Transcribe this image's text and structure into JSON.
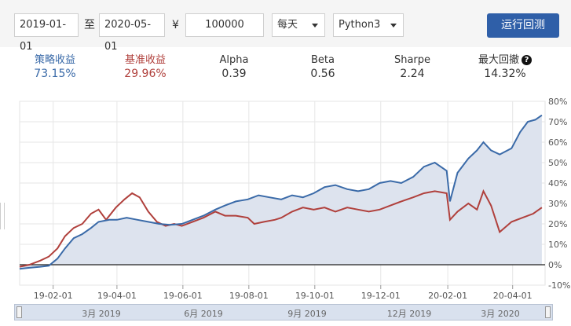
{
  "toolbar": {
    "start_date": "2019-01-01",
    "separator": "至",
    "end_date": "2020-05-01",
    "currency": "¥",
    "capital": "100000",
    "frequency": "每天",
    "language": "Python3",
    "run_button": "运行回测"
  },
  "stats": [
    {
      "name": "策略收益",
      "value": "73.15%",
      "color": "#3a6aa8"
    },
    {
      "name": "基准收益",
      "value": "29.96%",
      "color": "#b0403c"
    },
    {
      "name": "Alpha",
      "value": "0.39",
      "color": "#333333"
    },
    {
      "name": "Beta",
      "value": "0.56",
      "color": "#333333"
    },
    {
      "name": "Sharpe",
      "value": "2.24",
      "color": "#333333"
    },
    {
      "name": "最大回撤",
      "value": "14.32%",
      "color": "#333333"
    }
  ],
  "navigator": {
    "labels": [
      "3月 2019",
      "6月 2019",
      "9月 2019",
      "12月 2019",
      "3月 2020"
    ]
  },
  "chart_data": {
    "type": "line",
    "x_tick_labels": [
      "19-02-01",
      "19-04-01",
      "19-06-01",
      "19-08-01",
      "19-10-01",
      "19-12-01",
      "20-02-01",
      "20-04-01"
    ],
    "y_tick_labels": [
      "80%",
      "70%",
      "60%",
      "50%",
      "40%",
      "30%",
      "20%",
      "10%",
      "0%",
      "-10%"
    ],
    "ylim": [
      -10,
      80
    ],
    "grid": true,
    "series": [
      {
        "name": "策略收益",
        "color": "#3a6aa8",
        "fill": "#dde3ee",
        "points": [
          [
            "2019-01-01",
            -2
          ],
          [
            "2019-01-10",
            -1.5
          ],
          [
            "2019-01-20",
            -1
          ],
          [
            "2019-01-28",
            -0.5
          ],
          [
            "2019-02-05",
            3
          ],
          [
            "2019-02-12",
            8
          ],
          [
            "2019-02-20",
            13
          ],
          [
            "2019-02-28",
            15
          ],
          [
            "2019-03-08",
            18
          ],
          [
            "2019-03-15",
            21
          ],
          [
            "2019-03-25",
            22
          ],
          [
            "2019-04-01",
            22
          ],
          [
            "2019-04-10",
            23
          ],
          [
            "2019-04-20",
            22
          ],
          [
            "2019-04-30",
            21
          ],
          [
            "2019-05-10",
            20
          ],
          [
            "2019-05-20",
            19.5
          ],
          [
            "2019-05-31",
            20
          ],
          [
            "2019-06-10",
            22
          ],
          [
            "2019-06-20",
            24
          ],
          [
            "2019-07-01",
            27
          ],
          [
            "2019-07-10",
            29
          ],
          [
            "2019-07-20",
            31
          ],
          [
            "2019-07-31",
            32
          ],
          [
            "2019-08-10",
            34
          ],
          [
            "2019-08-20",
            33
          ],
          [
            "2019-08-31",
            32
          ],
          [
            "2019-09-10",
            34
          ],
          [
            "2019-09-20",
            33
          ],
          [
            "2019-09-30",
            35
          ],
          [
            "2019-10-10",
            38
          ],
          [
            "2019-10-20",
            39
          ],
          [
            "2019-10-31",
            37
          ],
          [
            "2019-11-10",
            36
          ],
          [
            "2019-11-20",
            37
          ],
          [
            "2019-11-30",
            40
          ],
          [
            "2019-12-10",
            41
          ],
          [
            "2019-12-20",
            40
          ],
          [
            "2019-12-31",
            43
          ],
          [
            "2020-01-10",
            48
          ],
          [
            "2020-01-20",
            50
          ],
          [
            "2020-01-31",
            46
          ],
          [
            "2020-02-03",
            31
          ],
          [
            "2020-02-10",
            45
          ],
          [
            "2020-02-20",
            52
          ],
          [
            "2020-02-28",
            56
          ],
          [
            "2020-03-05",
            60
          ],
          [
            "2020-03-12",
            56
          ],
          [
            "2020-03-20",
            54
          ],
          [
            "2020-03-31",
            57
          ],
          [
            "2020-04-08",
            65
          ],
          [
            "2020-04-15",
            70
          ],
          [
            "2020-04-22",
            71
          ],
          [
            "2020-04-28",
            73.2
          ]
        ]
      },
      {
        "name": "基准收益",
        "color": "#b0403c",
        "points": [
          [
            "2019-01-01",
            -1
          ],
          [
            "2019-01-10",
            0
          ],
          [
            "2019-01-20",
            2
          ],
          [
            "2019-01-28",
            4
          ],
          [
            "2019-02-05",
            8
          ],
          [
            "2019-02-12",
            14
          ],
          [
            "2019-02-20",
            18
          ],
          [
            "2019-02-28",
            20
          ],
          [
            "2019-03-08",
            25
          ],
          [
            "2019-03-15",
            27
          ],
          [
            "2019-03-22",
            22
          ],
          [
            "2019-03-31",
            28
          ],
          [
            "2019-04-08",
            32
          ],
          [
            "2019-04-15",
            35
          ],
          [
            "2019-04-22",
            33
          ],
          [
            "2019-04-30",
            26
          ],
          [
            "2019-05-08",
            21
          ],
          [
            "2019-05-16",
            19
          ],
          [
            "2019-05-24",
            20
          ],
          [
            "2019-05-31",
            19
          ],
          [
            "2019-06-10",
            21
          ],
          [
            "2019-06-20",
            23
          ],
          [
            "2019-07-01",
            26
          ],
          [
            "2019-07-10",
            24
          ],
          [
            "2019-07-20",
            24
          ],
          [
            "2019-07-31",
            23
          ],
          [
            "2019-08-06",
            20
          ],
          [
            "2019-08-15",
            21
          ],
          [
            "2019-08-25",
            22
          ],
          [
            "2019-08-31",
            23
          ],
          [
            "2019-09-10",
            26
          ],
          [
            "2019-09-20",
            28
          ],
          [
            "2019-09-30",
            27
          ],
          [
            "2019-10-10",
            28
          ],
          [
            "2019-10-20",
            26
          ],
          [
            "2019-10-31",
            28
          ],
          [
            "2019-11-10",
            27
          ],
          [
            "2019-11-20",
            26
          ],
          [
            "2019-11-30",
            27
          ],
          [
            "2019-12-10",
            29
          ],
          [
            "2019-12-20",
            31
          ],
          [
            "2019-12-31",
            33
          ],
          [
            "2020-01-10",
            35
          ],
          [
            "2020-01-20",
            36
          ],
          [
            "2020-01-31",
            35
          ],
          [
            "2020-02-03",
            22
          ],
          [
            "2020-02-10",
            26
          ],
          [
            "2020-02-20",
            30
          ],
          [
            "2020-02-28",
            27
          ],
          [
            "2020-03-05",
            36
          ],
          [
            "2020-03-12",
            29
          ],
          [
            "2020-03-20",
            16
          ],
          [
            "2020-03-31",
            21
          ],
          [
            "2020-04-10",
            23
          ],
          [
            "2020-04-20",
            25
          ],
          [
            "2020-04-28",
            28
          ]
        ]
      }
    ]
  }
}
